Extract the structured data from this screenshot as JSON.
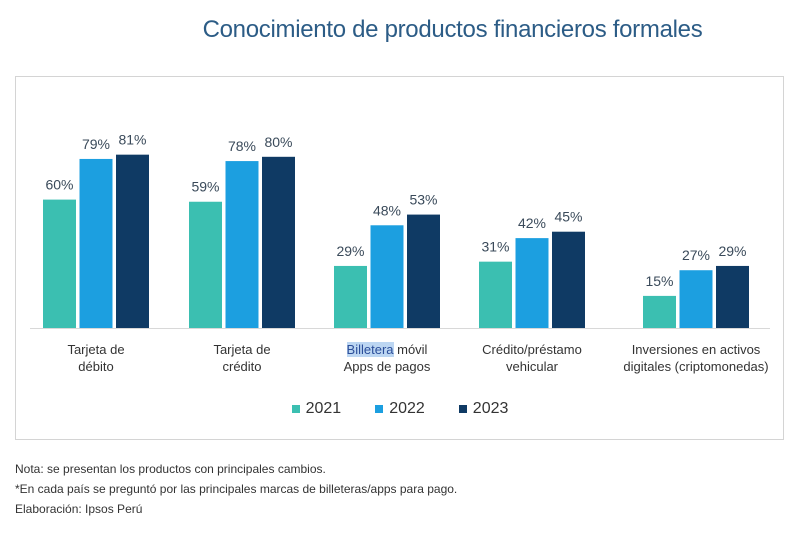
{
  "chart_data": {
    "type": "bar",
    "title": "Conocimiento de productos financieros formales",
    "categories": [
      [
        "Tarjeta de",
        "débito"
      ],
      [
        "Tarjeta de",
        "crédito"
      ],
      [
        "Billetera móvil",
        "Apps de pagos"
      ],
      [
        "Crédito/préstamo",
        "vehicular"
      ],
      [
        "Inversiones en activos",
        "digitales (criptomonedas)"
      ]
    ],
    "highlighted_word": "Billetera",
    "series": [
      {
        "name": "2021",
        "color": "#3bbfb1",
        "values": [
          60,
          59,
          29,
          31,
          15
        ]
      },
      {
        "name": "2022",
        "color": "#1c9fe0",
        "values": [
          79,
          78,
          48,
          42,
          27
        ]
      },
      {
        "name": "2023",
        "color": "#0f3a64",
        "values": [
          81,
          80,
          53,
          45,
          29
        ]
      }
    ],
    "value_suffix": "%",
    "ylim": [
      0,
      100
    ],
    "grid": false,
    "legend_position": "bottom"
  },
  "notes": [
    "Nota: se presentan los productos con principales cambios.",
    "*En cada país se preguntó por las principales marcas de billeteras/apps para pago.",
    "Elaboración: Ipsos Perú"
  ]
}
